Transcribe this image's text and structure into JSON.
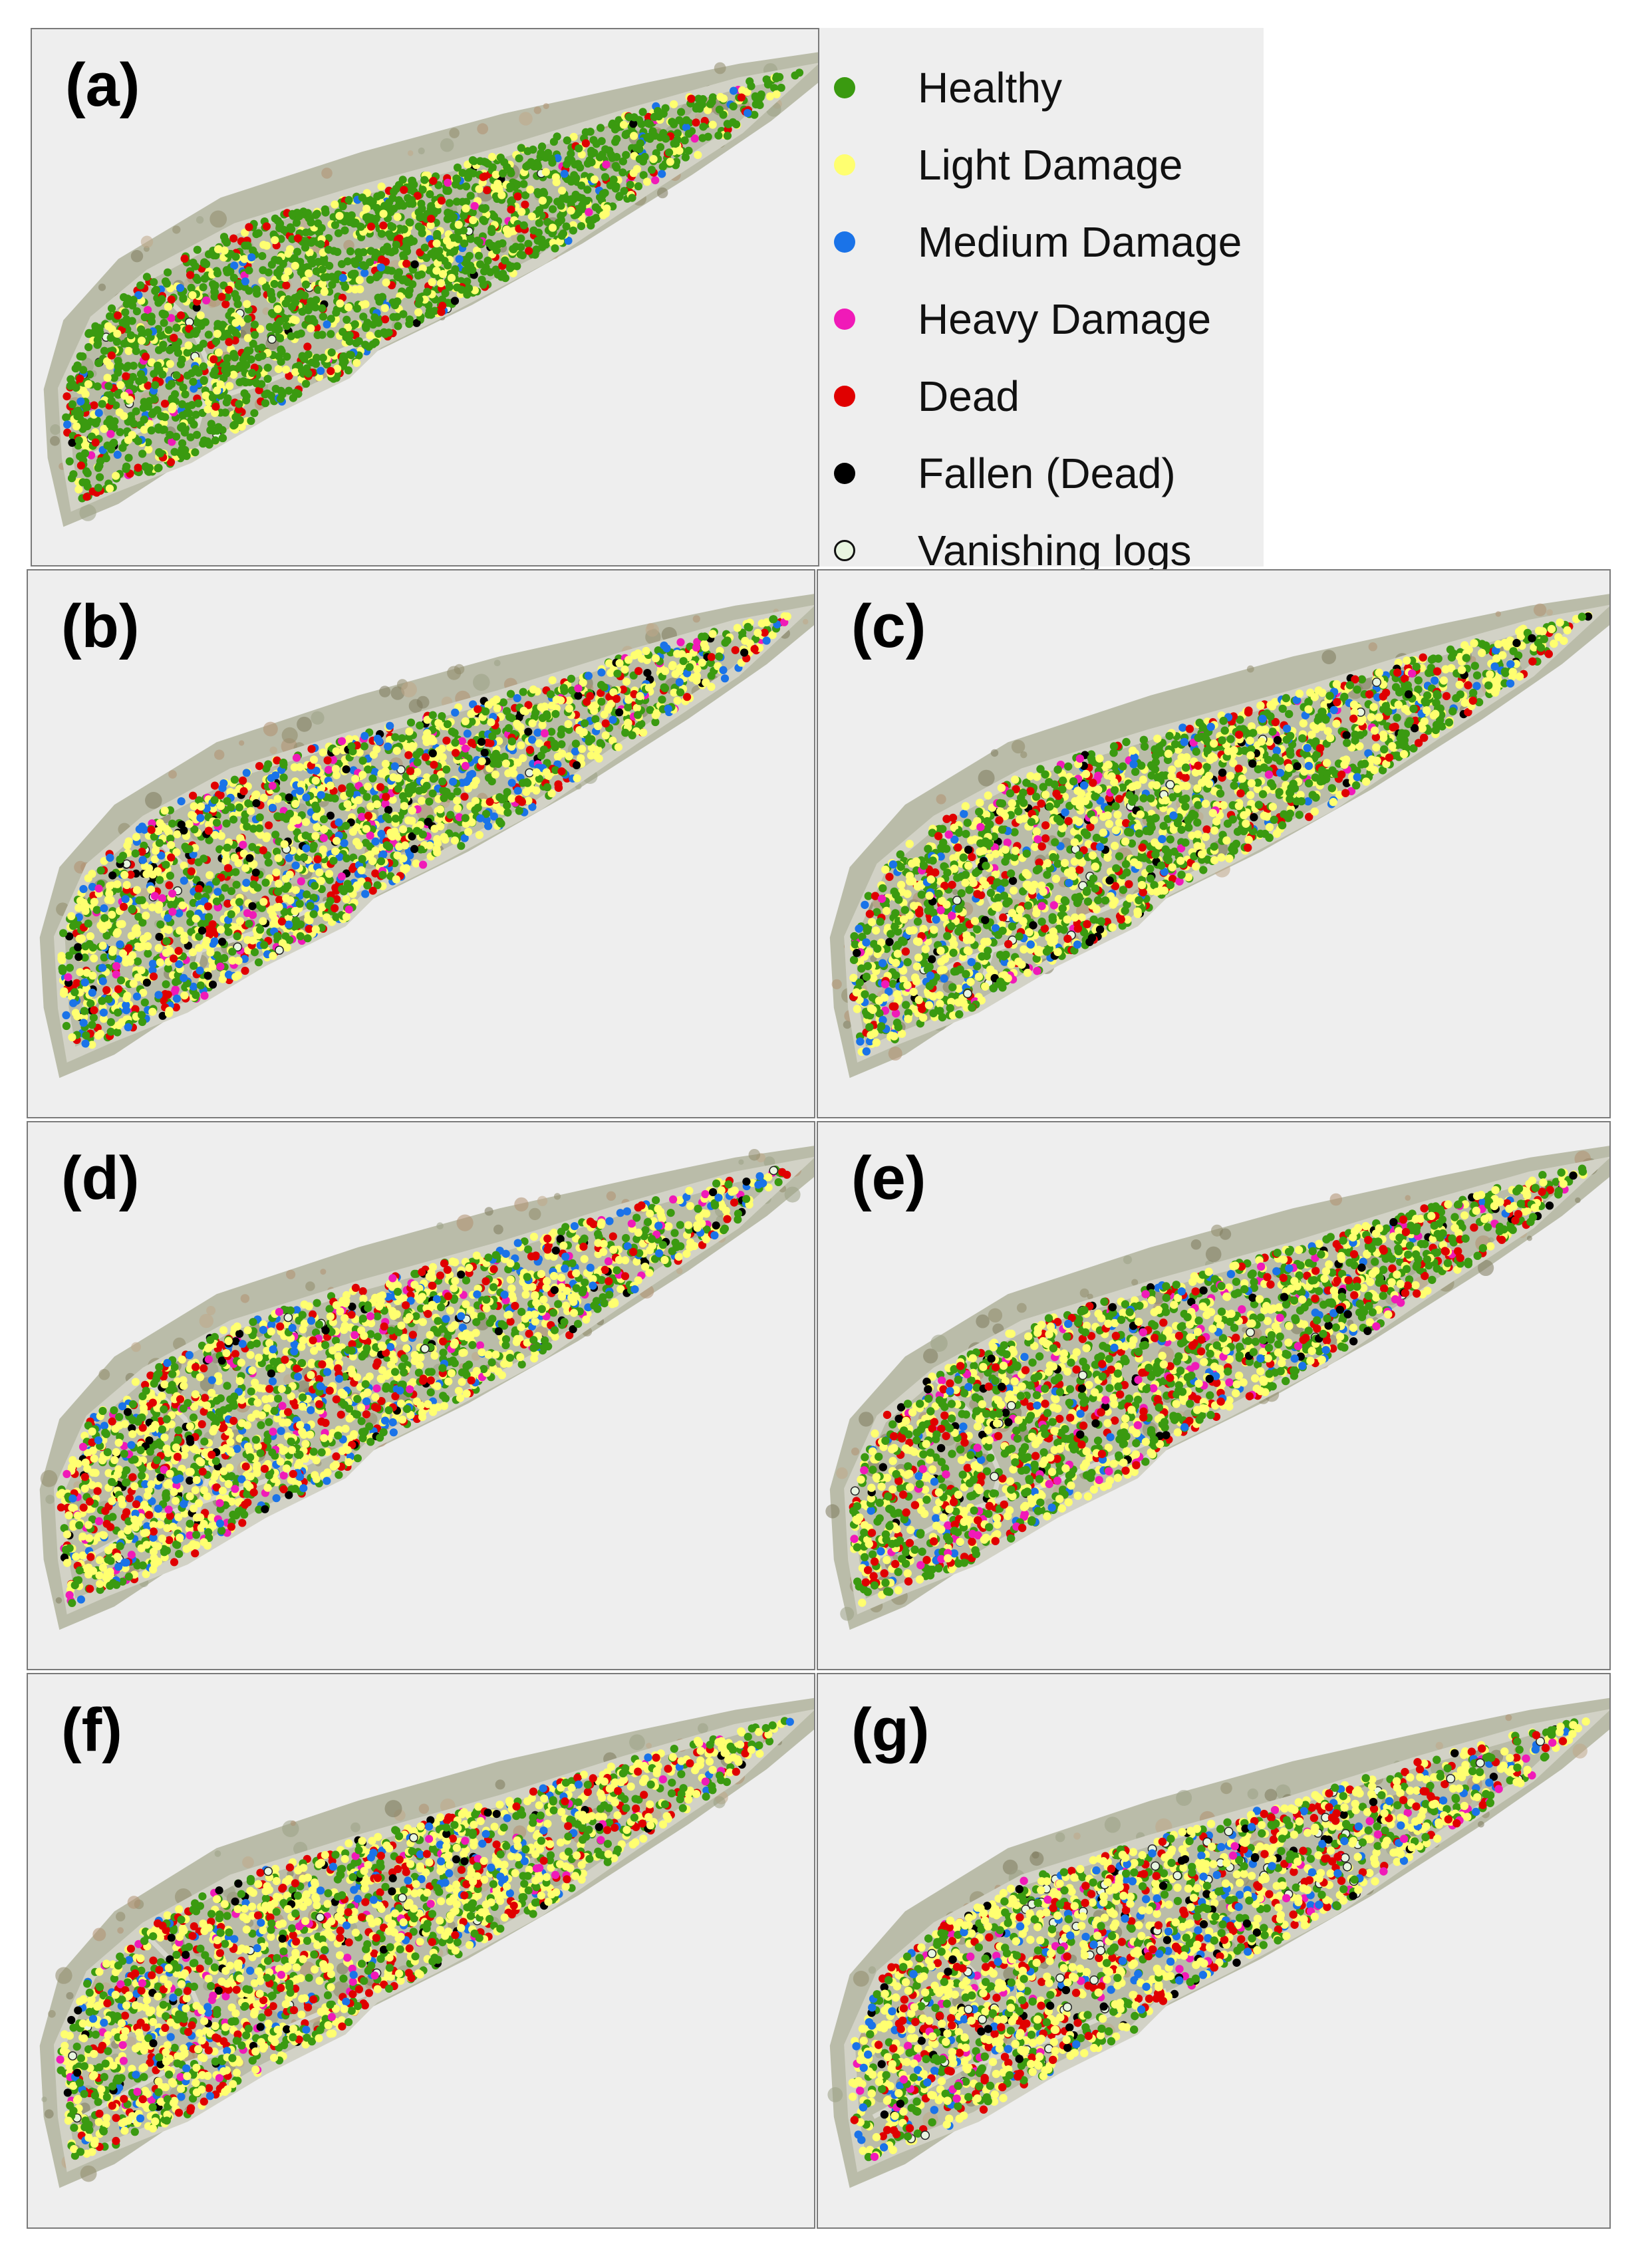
{
  "legend": {
    "items": [
      {
        "label": "Healthy",
        "color": "#3a9a10",
        "key": "healthy"
      },
      {
        "label": "Light Damage",
        "color": "#ffff70",
        "key": "light"
      },
      {
        "label": "Medium Damage",
        "color": "#1a73e8",
        "key": "medium"
      },
      {
        "label": "Heavy Damage",
        "color": "#f01ab8",
        "key": "heavy"
      },
      {
        "label": "Dead",
        "color": "#e00000",
        "key": "dead"
      },
      {
        "label": "Fallen (Dead)",
        "color": "#000000",
        "key": "fallen"
      },
      {
        "label": "Vanishing logs",
        "color": "#e8f5e0",
        "key": "vanishing"
      }
    ]
  },
  "panels": [
    {
      "label": "(a)",
      "mix": {
        "healthy": 0.7,
        "light": 0.17,
        "medium": 0.03,
        "heavy": 0.01,
        "dead": 0.08,
        "fallen": 0.005,
        "vanishing": 0.005
      }
    },
    {
      "label": "(b)",
      "mix": {
        "healthy": 0.32,
        "light": 0.38,
        "medium": 0.12,
        "heavy": 0.04,
        "dead": 0.1,
        "fallen": 0.035,
        "vanishing": 0.005
      }
    },
    {
      "label": "(c)",
      "mix": {
        "healthy": 0.42,
        "light": 0.36,
        "medium": 0.06,
        "heavy": 0.03,
        "dead": 0.09,
        "fallen": 0.035,
        "vanishing": 0.005
      }
    },
    {
      "label": "(d)",
      "mix": {
        "healthy": 0.3,
        "light": 0.4,
        "medium": 0.09,
        "heavy": 0.05,
        "dead": 0.12,
        "fallen": 0.035,
        "vanishing": 0.005
      }
    },
    {
      "label": "(e)",
      "mix": {
        "healthy": 0.4,
        "light": 0.34,
        "medium": 0.04,
        "heavy": 0.04,
        "dead": 0.14,
        "fallen": 0.035,
        "vanishing": 0.005
      }
    },
    {
      "label": "(f)",
      "mix": {
        "healthy": 0.3,
        "light": 0.42,
        "medium": 0.07,
        "heavy": 0.03,
        "dead": 0.14,
        "fallen": 0.035,
        "vanishing": 0.005
      }
    },
    {
      "label": "(g)",
      "mix": {
        "healthy": 0.26,
        "light": 0.42,
        "medium": 0.08,
        "heavy": 0.04,
        "dead": 0.15,
        "fallen": 0.03,
        "vanishing": 0.03
      }
    }
  ]
}
